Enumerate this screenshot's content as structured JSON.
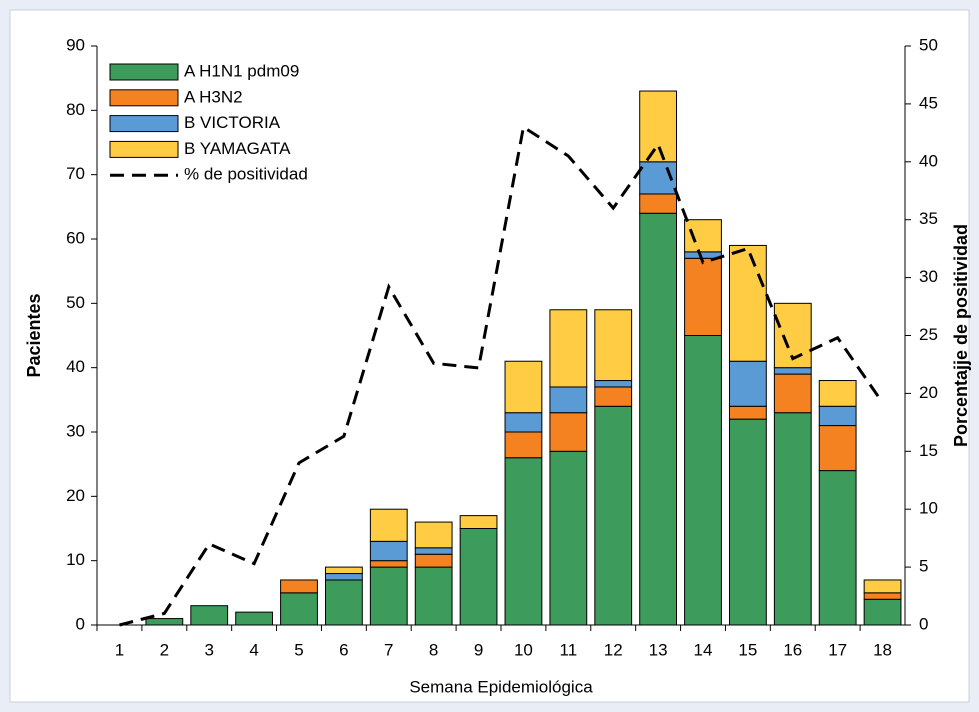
{
  "chart_data": {
    "type": "bar",
    "stacked": true,
    "x_label": "Semana Epidemiológica",
    "y_label": "Pacientes",
    "y2_label": "Porcentajje de positividad",
    "categories": [
      "1",
      "2",
      "3",
      "4",
      "5",
      "6",
      "7",
      "8",
      "9",
      "10",
      "11",
      "12",
      "13",
      "14",
      "15",
      "16",
      "17",
      "18"
    ],
    "series": [
      {
        "name": "A H1N1 pdm09",
        "color": "#3d9c5c",
        "values": [
          0,
          1,
          3,
          2,
          5,
          7,
          9,
          9,
          15,
          26,
          27,
          34,
          64,
          45,
          32,
          33,
          24,
          4
        ]
      },
      {
        "name": "A H3N2",
        "color": "#f58220",
        "values": [
          0,
          0,
          0,
          0,
          2,
          0,
          1,
          2,
          0,
          4,
          6,
          3,
          3,
          12,
          2,
          6,
          7,
          1
        ]
      },
      {
        "name": "B VICTORIA",
        "color": "#5b9bd5",
        "values": [
          0,
          0,
          0,
          0,
          0,
          1,
          3,
          1,
          0,
          3,
          4,
          1,
          5,
          1,
          7,
          1,
          3,
          0
        ]
      },
      {
        "name": "B YAMAGATA",
        "color": "#ffcc44",
        "values": [
          0,
          0,
          0,
          0,
          0,
          1,
          5,
          4,
          2,
          8,
          12,
          11,
          11,
          5,
          18,
          10,
          4,
          2
        ]
      },
      {
        "name": "% de positividad",
        "color": "#000000",
        "type": "line",
        "axis": "y2",
        "dashed": true,
        "values": [
          0,
          1,
          7,
          5.3,
          14,
          16.3,
          29.2,
          22.6,
          22.2,
          43,
          40.5,
          36,
          41.5,
          31.3,
          32.5,
          23,
          24.8,
          19.2
        ]
      }
    ],
    "ylim": [
      0,
      90
    ],
    "yticks": [
      0,
      10,
      20,
      30,
      40,
      50,
      60,
      70,
      80,
      90
    ],
    "y2lim": [
      0,
      50
    ],
    "y2ticks": [
      0,
      5,
      10,
      15,
      20,
      25,
      30,
      35,
      40,
      45,
      50
    ],
    "legend": "top-left"
  }
}
